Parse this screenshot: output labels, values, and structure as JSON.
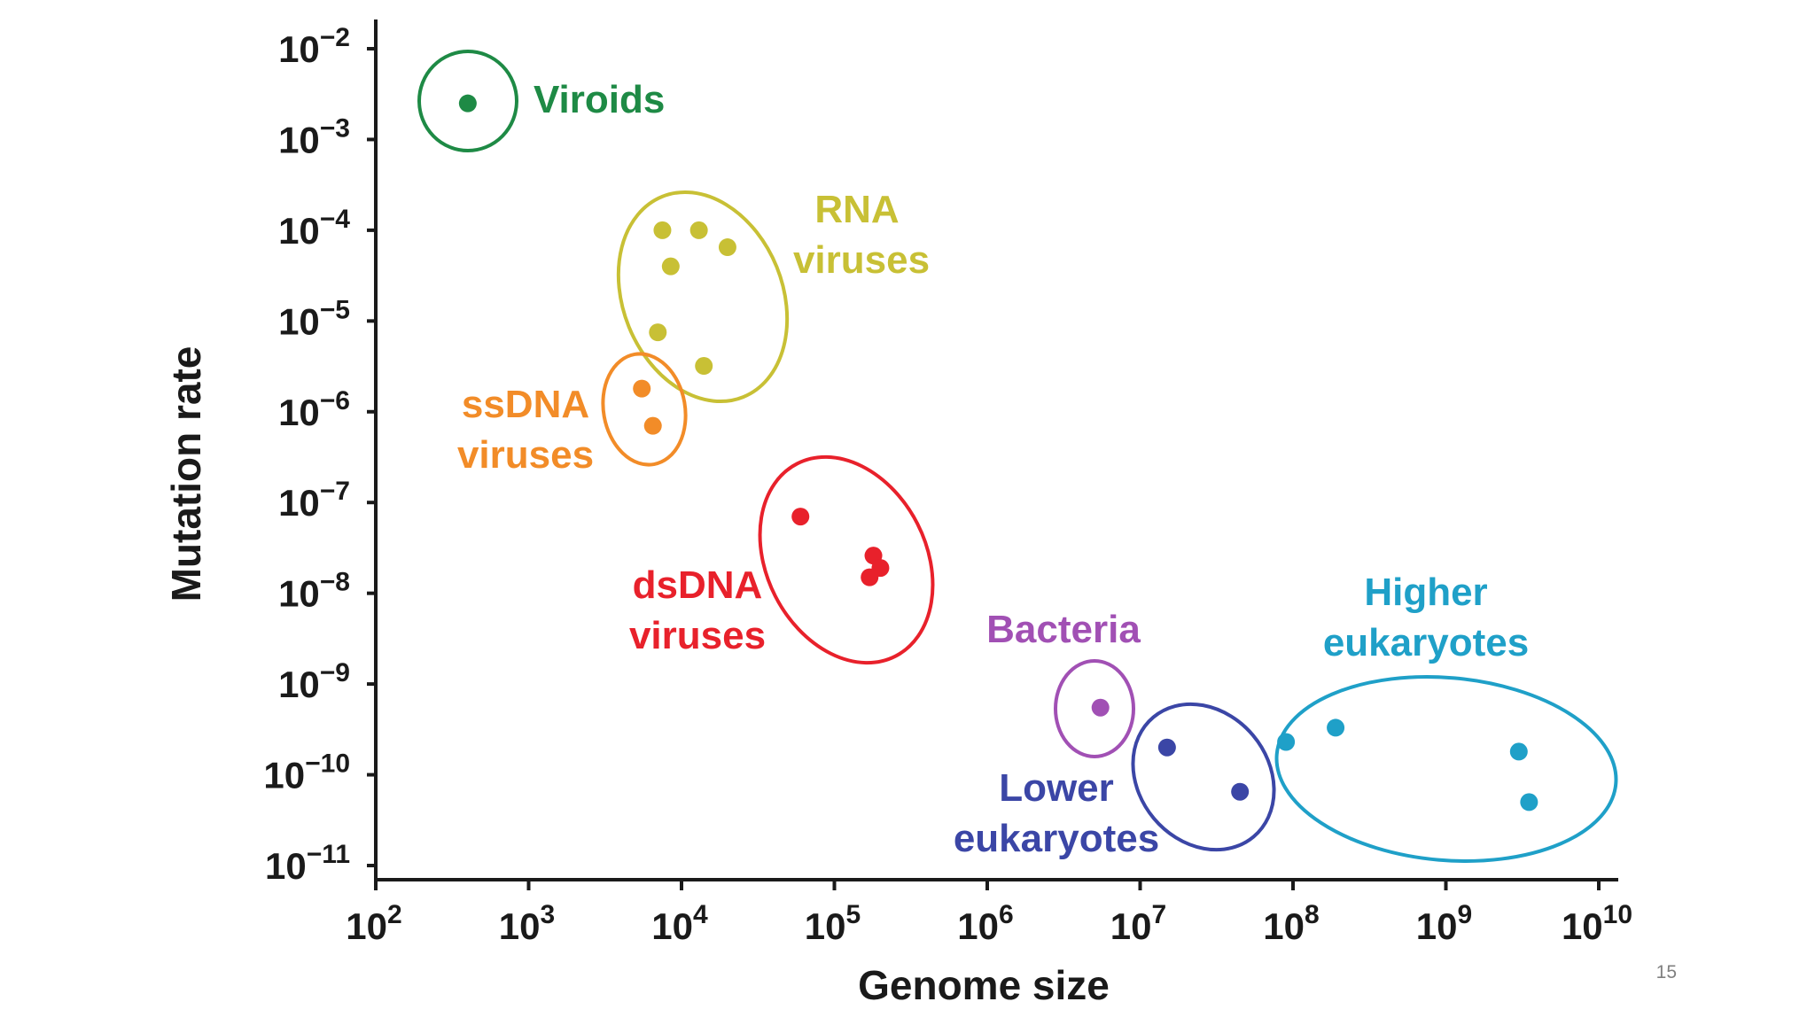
{
  "slide": {
    "page_number": "15"
  },
  "chart_data": {
    "type": "scatter",
    "title": "",
    "xlabel": "Genome size",
    "ylabel": "Mutation rate",
    "x_scale": "log10",
    "y_scale": "log10",
    "xlim": [
      100,
      10000000000
    ],
    "ylim": [
      1e-11,
      0.01
    ],
    "grid": false,
    "legend": "none (groups labelled directly beside each cluster)",
    "x_tick_exponents": [
      2,
      3,
      4,
      5,
      6,
      7,
      8,
      9,
      10
    ],
    "y_tick_exponents": [
      -2,
      -3,
      -4,
      -5,
      -6,
      -7,
      -8,
      -9,
      -10,
      -11
    ],
    "tick_base": "10",
    "series": [
      {
        "name": "Viroids",
        "color": "#1e8a45",
        "points": [
          {
            "x": 400,
            "y": 0.0025
          }
        ]
      },
      {
        "name": "RNA viruses",
        "color": "#c8c035",
        "points": [
          {
            "x": 7500,
            "y": 0.0001
          },
          {
            "x": 13000,
            "y": 0.0001
          },
          {
            "x": 20000,
            "y": 6.5e-05
          },
          {
            "x": 8500,
            "y": 4e-05
          },
          {
            "x": 7000,
            "y": 7.5e-06
          },
          {
            "x": 14000,
            "y": 3.2e-06
          }
        ]
      },
      {
        "name": "ssDNA viruses",
        "color": "#f28c28",
        "points": [
          {
            "x": 5500,
            "y": 1.8e-06
          },
          {
            "x": 6500,
            "y": 7e-07
          }
        ]
      },
      {
        "name": "dsDNA viruses",
        "color": "#e8212b",
        "points": [
          {
            "x": 60000,
            "y": 7e-08
          },
          {
            "x": 180000,
            "y": 2.6e-08
          },
          {
            "x": 200000,
            "y": 1.9e-08
          },
          {
            "x": 170000,
            "y": 1.5e-08
          }
        ]
      },
      {
        "name": "Bacteria",
        "color": "#a150b4",
        "points": [
          {
            "x": 5500000,
            "y": 5.5e-10
          }
        ]
      },
      {
        "name": "Lower eukaryotes",
        "color": "#3b46a6",
        "points": [
          {
            "x": 15000000,
            "y": 2e-10
          },
          {
            "x": 45000000,
            "y": 6.5e-11
          }
        ]
      },
      {
        "name": "Higher eukaryotes",
        "color": "#1fa0c8",
        "points": [
          {
            "x": 90000000,
            "y": 2.3e-10
          },
          {
            "x": 190000000,
            "y": 3.3e-10
          },
          {
            "x": 3000000000,
            "y": 1.8e-10
          },
          {
            "x": 3500000000,
            "y": 5e-11
          }
        ]
      }
    ],
    "labels": [
      {
        "text": "Viroids",
        "series": "Viroids"
      },
      {
        "text": "RNA",
        "series": "RNA viruses"
      },
      {
        "text": "viruses",
        "series": "RNA viruses"
      },
      {
        "text": "ssDNA",
        "series": "ssDNA viruses"
      },
      {
        "text": "viruses",
        "series": "ssDNA viruses"
      },
      {
        "text": "dsDNA",
        "series": "dsDNA viruses"
      },
      {
        "text": "viruses",
        "series": "dsDNA viruses"
      },
      {
        "text": "Bacteria",
        "series": "Bacteria"
      },
      {
        "text": "Lower",
        "series": "Lower eukaryotes"
      },
      {
        "text": "eukaryotes",
        "series": "Lower eukaryotes"
      },
      {
        "text": "Higher",
        "series": "Higher eukaryotes"
      },
      {
        "text": "eukaryotes",
        "series": "Higher eukaryotes"
      }
    ]
  }
}
